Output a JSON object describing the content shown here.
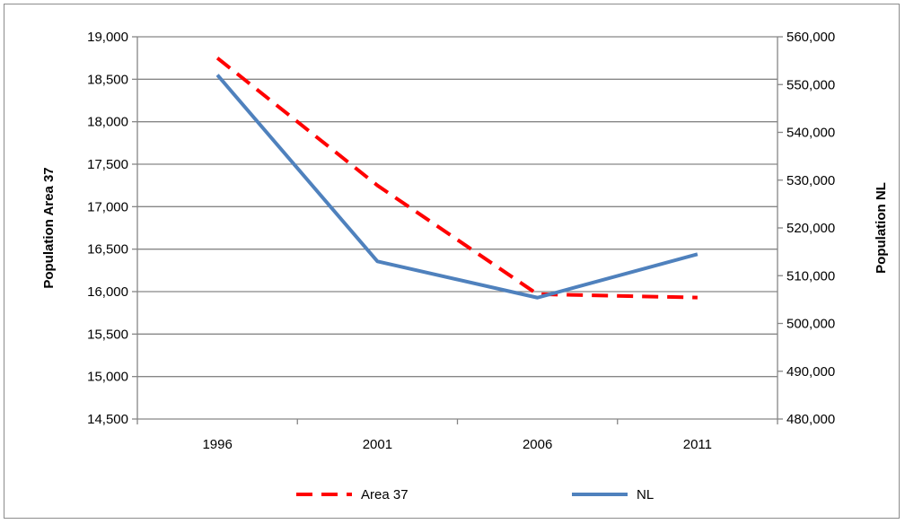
{
  "chart_data": {
    "type": "line",
    "categories": [
      "1996",
      "2001",
      "2006",
      "2011"
    ],
    "series": [
      {
        "name": "Area 37",
        "axis": "left",
        "values": [
          18750,
          17250,
          15970,
          15930
        ],
        "color": "#ff0000",
        "style": "dashed"
      },
      {
        "name": "NL",
        "axis": "right",
        "values": [
          552000,
          513000,
          505400,
          514500
        ],
        "color": "#4f81bd",
        "style": "solid"
      }
    ],
    "ylabel": "Population Area 37",
    "y2label": "Population NL",
    "ylim": [
      14500,
      19000
    ],
    "y2lim": [
      480000,
      560000
    ],
    "yticks": [
      "14,500",
      "15,000",
      "15,500",
      "16,000",
      "16,500",
      "17,000",
      "17,500",
      "18,000",
      "18,500",
      "19,000"
    ],
    "y2ticks": [
      "480,000",
      "490,000",
      "500,000",
      "510,000",
      "520,000",
      "530,000",
      "540,000",
      "550,000",
      "560,000"
    ],
    "grid": true,
    "legend_position": "bottom"
  }
}
